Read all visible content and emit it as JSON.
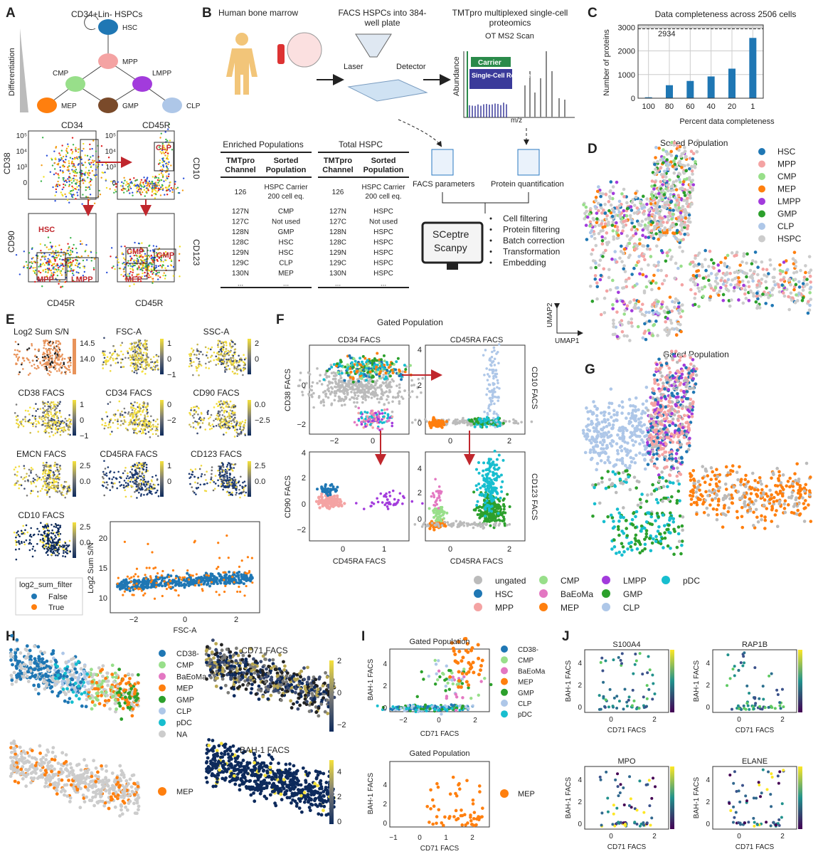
{
  "colors": {
    "HSC": "#1f77b4",
    "MPP": "#f4a3a3",
    "CMP": "#98df8a",
    "MEP": "#ff7f0e",
    "LMPP": "#a23bdc",
    "GMP": "#2ca02c",
    "CLP": "#aec7e8",
    "HSPC": "#cccccc",
    "pDC": "#17becf",
    "BaEoMa": "#e377c2",
    "ungated": "#bbbbbb",
    "CD38-": "#1f77b4",
    "NA": "#cccccc",
    "bar": "#1f77b4",
    "arrow": "#c0272d"
  },
  "panelA": {
    "label": "A",
    "title": "CD34+Lin- HSPCs",
    "y_label": "Differentiation",
    "nodes": [
      "HSC",
      "MPP",
      "CMP",
      "LMPP",
      "MEP",
      "GMP",
      "CLP"
    ],
    "facs": {
      "top_left_title": "CD34",
      "top_right_title": "CD45R",
      "top_left_y": "CD38",
      "top_right_y": "CD10",
      "bottom_left_y": "CD90",
      "bottom_right_y": "CD123",
      "bottom_x": "CD45R",
      "gates": [
        "CLP",
        "HSC",
        "MPP",
        "LMPP",
        "CMP",
        "GMP",
        "MEP"
      ],
      "ticks": [
        "10⁵",
        "10⁴",
        "10³",
        "0"
      ]
    }
  },
  "panelB": {
    "label": "B",
    "step1": "Human bone marrow",
    "step2": "FACS HSPCs into 384-well plate",
    "step3": "TMTpro multiplexed single-cell proteomics",
    "step3_sub": "OT MS2 Scan",
    "laser": "Laser",
    "detector": "Detector",
    "carrier": "Carrier",
    "reporter": "Single-Cell Reporter",
    "abundance": "Abundance",
    "mz": "m/z",
    "tables": [
      {
        "title": "Enriched Populations",
        "headers": [
          "TMTpro Channel",
          "Sorted Population"
        ],
        "rows": [
          [
            "126",
            "HSPC Carrier 200 cell eq."
          ],
          [
            "127N",
            "CMP"
          ],
          [
            "127C",
            "Not used"
          ],
          [
            "128N",
            "GMP"
          ],
          [
            "128C",
            "HSC"
          ],
          [
            "129N",
            "HSC"
          ],
          [
            "129C",
            "CLP"
          ],
          [
            "130N",
            "MEP"
          ],
          [
            "...",
            "..."
          ]
        ]
      },
      {
        "title": "Total HSPC",
        "headers": [
          "TMTpro Channel",
          "Sorted Population"
        ],
        "rows": [
          [
            "126",
            "HSPC Carrier 200 cell eq."
          ],
          [
            "127N",
            "HSPC"
          ],
          [
            "127C",
            "Not used"
          ],
          [
            "128N",
            "HSPC"
          ],
          [
            "128C",
            "HSPC"
          ],
          [
            "129N",
            "HSPC"
          ],
          [
            "129C",
            "HSPC"
          ],
          [
            "130N",
            "HSPC"
          ],
          [
            "...",
            "..."
          ]
        ]
      }
    ],
    "facs_params": "FACS parameters",
    "protein_quant": "Protein quantification",
    "software": [
      "SCeptre",
      "Scanpy"
    ],
    "steps": [
      "Cell filtering",
      "Protein filtering",
      "Batch correction",
      "Transformation",
      "Embedding"
    ]
  },
  "chart_data": {
    "type": "bar",
    "title": "Data completeness across 2506 cells",
    "xlabel": "Percent data completeness",
    "ylabel": "Number of proteins",
    "categories": [
      "100",
      "80",
      "60",
      "40",
      "20",
      "1"
    ],
    "values": [
      40,
      550,
      730,
      920,
      1250,
      2550
    ],
    "ylim": [
      0,
      3100
    ],
    "yticks": [
      0,
      1000,
      2000,
      3000
    ],
    "reference_line": 2934,
    "reference_label": "2934",
    "grid": true
  },
  "panelC": {
    "label": "C"
  },
  "panelD": {
    "label": "D",
    "title": "Sorted Population",
    "legend": [
      "HSC",
      "MPP",
      "CMP",
      "MEP",
      "LMPP",
      "GMP",
      "CLP",
      "HSPC"
    ],
    "umap1": "UMAP1",
    "umap2": "UMAP2"
  },
  "panelE": {
    "label": "E",
    "panels": [
      {
        "title": "Log2 Sum S/N",
        "ticks": [
          "14.5",
          "14.0"
        ]
      },
      {
        "title": "FSC-A",
        "ticks": [
          "1",
          "0",
          "−1"
        ]
      },
      {
        "title": "SSC-A",
        "ticks": [
          "2",
          "0"
        ]
      },
      {
        "title": "CD38 FACS",
        "ticks": [
          "1",
          "0",
          "−1"
        ]
      },
      {
        "title": "CD34 FACS",
        "ticks": [
          "0",
          "−2"
        ]
      },
      {
        "title": "CD90 FACS",
        "ticks": [
          "0.0",
          "−2.5"
        ]
      },
      {
        "title": "EMCN FACS",
        "ticks": [
          "2.5",
          "0.0"
        ]
      },
      {
        "title": "CD45RA FACS",
        "ticks": [
          "1",
          "0"
        ]
      },
      {
        "title": "CD123 FACS",
        "ticks": [
          "2.5",
          "0.0"
        ]
      },
      {
        "title": "CD10 FACS",
        "ticks": [
          "2.5",
          "0.0"
        ]
      }
    ],
    "scatter": {
      "xlabel": "FSC-A",
      "ylabel": "Log2 Sum S/N",
      "xticks": [
        "−2",
        "0",
        "2"
      ],
      "yticks": [
        "20",
        "15",
        "10"
      ]
    },
    "legend_title": "log2_sum_filter",
    "legend": [
      {
        "label": "False",
        "color": "#1f77b4"
      },
      {
        "label": "True",
        "color": "#ff7f0e"
      }
    ]
  },
  "panelF": {
    "label": "F",
    "title": "Gated Population",
    "tl_title": "CD34 FACS",
    "tr_title": "CD45RA FACS",
    "tl_y": "CD38 FACS",
    "tr_y": "CD10 FACS",
    "bl_y": "CD90 FACS",
    "br_y": "CD123 FACS",
    "bl_x": "CD45RA FACS",
    "br_x": "CD45RA FACS"
  },
  "panelG": {
    "label": "G",
    "title": "Gated Population"
  },
  "legendFG": [
    "ungated",
    "HSC",
    "MPP",
    "CMP",
    "BaEoMa",
    "MEP",
    "LMPP",
    "GMP",
    "CLP",
    "pDC"
  ],
  "panelH": {
    "label": "H",
    "legend": [
      "CD38-",
      "CMP",
      "BaEoMa",
      "MEP",
      "GMP",
      "CLP",
      "pDC",
      "NA"
    ],
    "cd71_title": "CD71 FACS",
    "cd71_ticks": [
      "2",
      "0",
      "−2"
    ],
    "bah_title": "BAH-1 FACS",
    "bah_ticks": [
      "4",
      "2",
      "0"
    ],
    "mep": "MEP"
  },
  "panelI": {
    "label": "I",
    "title1": "Gated Population",
    "title2": "Gated Population",
    "legend": [
      "CD38-",
      "CMP",
      "BaEoMa",
      "MEP",
      "GMP",
      "CLP",
      "pDC"
    ],
    "xlabel": "CD71 FACS",
    "ylabel": "BAH-1 FACS",
    "mep": "MEP"
  },
  "panelJ": {
    "label": "J",
    "panels": [
      "S100A4",
      "RAP1B",
      "MPO",
      "ELANE"
    ],
    "xlabel": "CD71 FACS",
    "ylabel": "BAH-1 FACS"
  }
}
